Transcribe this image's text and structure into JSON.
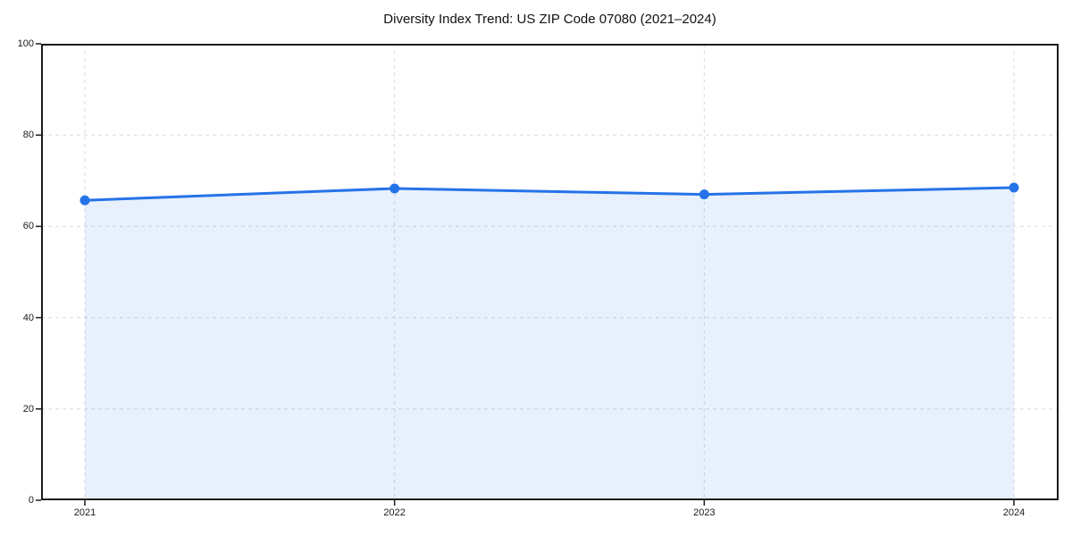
{
  "chart_data": {
    "type": "line",
    "title": "Diversity Index Trend: US ZIP Code 07080 (2021–2024)",
    "categories": [
      "2021",
      "2022",
      "2023",
      "2024"
    ],
    "series": [
      {
        "name": "Diversity Index",
        "values": [
          65.7,
          68.3,
          67.0,
          68.5
        ]
      }
    ],
    "xlabel": "",
    "ylabel": "",
    "ylim": [
      0,
      100
    ],
    "y_ticks": [
      0,
      20,
      40,
      60,
      80,
      100
    ],
    "grid": "dashed",
    "legend_position": "none",
    "area_fill": true,
    "marker": "circle",
    "colors": {
      "line": "#2573E8",
      "marker": "#2573E8",
      "fill": "#2573E8",
      "fill_opacity": 0.11,
      "grid": "#DBDBDB",
      "spine": "#1C1C1C",
      "text": "#1A1A1A",
      "background": "#FFFFFF"
    }
  }
}
